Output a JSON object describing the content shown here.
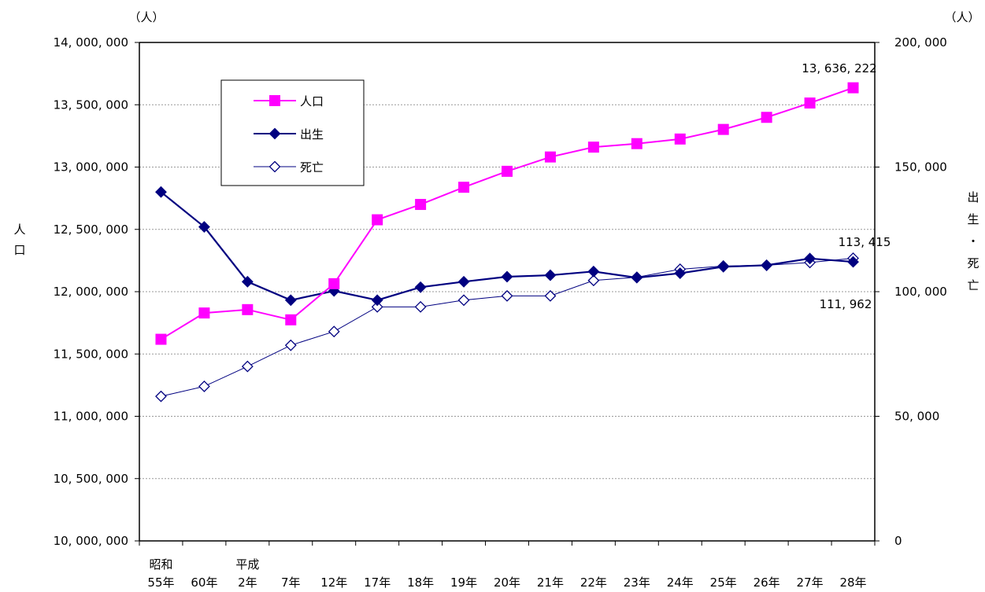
{
  "chart_data": {
    "type": "line",
    "left_unit": "（人）",
    "right_unit": "（人）",
    "left_axis_label": "人口",
    "right_axis_label": "出生・死亡",
    "y_left": {
      "min": 10000000,
      "max": 14000000,
      "ticks": [
        10000000,
        10500000,
        11000000,
        11500000,
        12000000,
        12500000,
        13000000,
        13500000,
        14000000
      ],
      "tick_labels": [
        "10, 000, 000",
        "10, 500, 000",
        "11, 000, 000",
        "11, 500, 000",
        "12, 000, 000",
        "12, 500, 000",
        "13, 000, 000",
        "13, 500, 000",
        "14, 000, 000"
      ]
    },
    "y_right": {
      "min": 0,
      "max": 200000,
      "ticks": [
        0,
        50000,
        100000,
        150000,
        200000
      ],
      "tick_labels": [
        "0",
        "50, 000",
        "100, 000",
        "150, 000",
        "200, 000"
      ]
    },
    "era_labels": [
      {
        "label": "昭和",
        "category_index": 0
      },
      {
        "label": "平成",
        "category_index": 2
      }
    ],
    "categories": [
      "55年",
      "60年",
      "2年",
      "7年",
      "12年",
      "17年",
      "18年",
      "19年",
      "20年",
      "21年",
      "22年",
      "23年",
      "24年",
      "25年",
      "26年",
      "27年",
      "28年"
    ],
    "grid": true,
    "legend_position": "top-left",
    "series": [
      {
        "name": "人口",
        "axis": "left",
        "color": "#ff00ff",
        "marker": "square-filled",
        "values": [
          11618000,
          11829000,
          11856000,
          11774000,
          12064000,
          12577000,
          12700000,
          12838000,
          12966000,
          13081000,
          13160000,
          13188000,
          13225000,
          13302000,
          13399000,
          13514000,
          13636222
        ]
      },
      {
        "name": "出生",
        "axis": "right",
        "color": "#000080",
        "marker": "diamond-filled",
        "values": [
          140000,
          126000,
          104000,
          96600,
          100300,
          96600,
          101800,
          104000,
          106000,
          106600,
          108100,
          105600,
          107400,
          110000,
          110600,
          113300,
          111962
        ]
      },
      {
        "name": "死亡",
        "axis": "right",
        "color": "#000080",
        "marker": "diamond-open",
        "values": [
          58000,
          62000,
          70000,
          78500,
          84000,
          93900,
          93900,
          96600,
          98300,
          98300,
          104500,
          105800,
          109000,
          110300,
          110600,
          111700,
          113415
        ]
      }
    ],
    "annotations": [
      {
        "text": "13, 636, 222",
        "series": 0,
        "category_index": 16
      },
      {
        "text": "113, 415",
        "series": 2,
        "category_index": 16
      },
      {
        "text": "111, 962",
        "series": 1,
        "category_index": 16
      }
    ]
  }
}
